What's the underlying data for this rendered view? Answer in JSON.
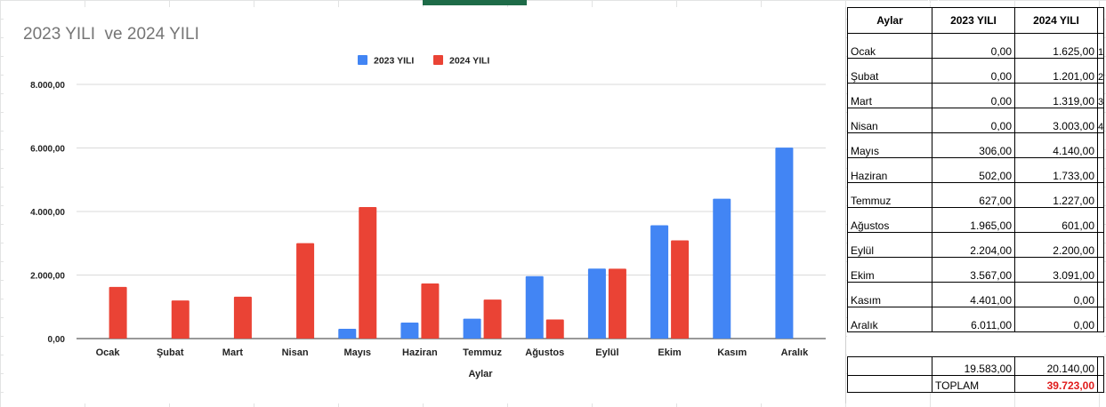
{
  "chart_data": {
    "type": "bar",
    "title": "2023 YILI  ve 2024 YILI",
    "xlabel": "Aylar",
    "ylabel": "",
    "categories": [
      "Ocak",
      "Şubat",
      "Mart",
      "Nisan",
      "Mayıs",
      "Haziran",
      "Temmuz",
      "Ağustos",
      "Eylül",
      "Ekim",
      "Kasım",
      "Aralık"
    ],
    "series": [
      {
        "name": "2023 YILI",
        "color": "#4285f4",
        "values": [
          0,
          0,
          0,
          0,
          306,
          502,
          627,
          1965,
          2204,
          3567,
          4401,
          6011
        ]
      },
      {
        "name": "2024 YILI",
        "color": "#ea4335",
        "values": [
          1625,
          1201,
          1319,
          3003,
          4140,
          1733,
          1227,
          601,
          2200,
          3091,
          0,
          0
        ]
      }
    ],
    "ylim": [
      0,
      8000
    ],
    "yticks": [
      0,
      2000,
      4000,
      6000,
      8000
    ],
    "ytick_labels": [
      "0,00",
      "2.000,00",
      "4.000,00",
      "6.000,00",
      "8.000,00"
    ],
    "grid": true,
    "legend_position": "top-center"
  },
  "table": {
    "headers": [
      "Aylar",
      "2023 YILI",
      "2024 YILI"
    ],
    "rows": [
      {
        "month": "Ocak",
        "y2023": "0,00",
        "y2024": "1.625,00",
        "extra": "1"
      },
      {
        "month": "Şubat",
        "y2023": "0,00",
        "y2024": "1.201,00",
        "extra": "2"
      },
      {
        "month": "Mart",
        "y2023": "0,00",
        "y2024": "1.319,00",
        "extra": "3"
      },
      {
        "month": "Nisan",
        "y2023": "0,00",
        "y2024": "3.003,00",
        "extra": "4"
      },
      {
        "month": "Mayıs",
        "y2023": "306,00",
        "y2024": "4.140,00",
        "extra": ""
      },
      {
        "month": "Haziran",
        "y2023": "502,00",
        "y2024": "1.733,00",
        "extra": ""
      },
      {
        "month": "Temmuz",
        "y2023": "627,00",
        "y2024": "1.227,00",
        "extra": ""
      },
      {
        "month": "Ağustos",
        "y2023": "1.965,00",
        "y2024": "601,00",
        "extra": ""
      },
      {
        "month": "Eylül",
        "y2023": "2.204,00",
        "y2024": "2.200,00",
        "extra": ""
      },
      {
        "month": "Ekim",
        "y2023": "3.567,00",
        "y2024": "3.091,00",
        "extra": ""
      },
      {
        "month": "Kasım",
        "y2023": "4.401,00",
        "y2024": "0,00",
        "extra": ""
      },
      {
        "month": "Aralık",
        "y2023": "6.011,00",
        "y2024": "0,00",
        "extra": ""
      }
    ],
    "total_2023": "19.583,00",
    "total_2024": "20.140,00",
    "grand_label": "TOPLAM",
    "grand_total": "39.723,00",
    "grand_total_color": "#e01b1b"
  }
}
